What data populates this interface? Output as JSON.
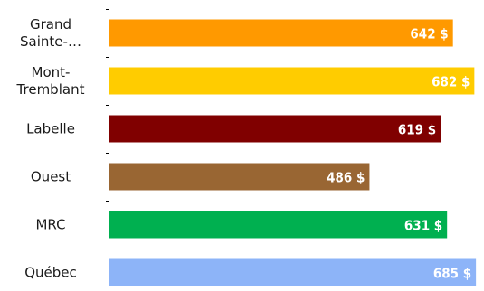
{
  "chart_data": {
    "type": "bar",
    "orientation": "horizontal",
    "categories": [
      [
        "Grand",
        "Sainte-…"
      ],
      [
        "Mont-",
        "Tremblant"
      ],
      [
        "Labelle"
      ],
      [
        "Ouest"
      ],
      [
        "MRC"
      ],
      [
        "Québec"
      ]
    ],
    "values": [
      642,
      682,
      619,
      486,
      631,
      685
    ],
    "data_labels": [
      "642 $",
      "682 $",
      "619 $",
      "486 $",
      "631 $",
      "685 $"
    ],
    "colors": [
      "#FF9900",
      "#FFCC00",
      "#800000",
      "#996633",
      "#00B050",
      "#8DB4F8"
    ],
    "xlim": [
      0,
      700
    ],
    "title": "",
    "xlabel": "",
    "ylabel": "",
    "grid": false,
    "legend": "none"
  }
}
